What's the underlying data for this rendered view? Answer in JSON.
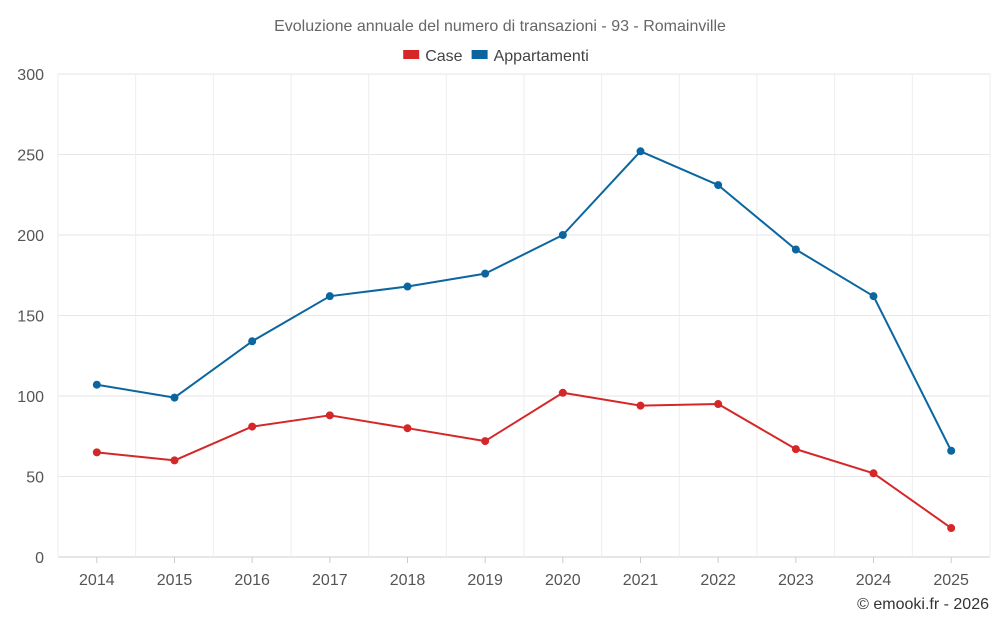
{
  "chart_data": {
    "type": "line",
    "title": "Evoluzione annuale del numero di transazioni - 93 - Romainville",
    "xlabel": "",
    "ylabel": "",
    "categories": [
      "2014",
      "2015",
      "2016",
      "2017",
      "2018",
      "2019",
      "2020",
      "2021",
      "2022",
      "2023",
      "2024",
      "2025"
    ],
    "ylim": [
      0,
      300
    ],
    "yticks": [
      0,
      50,
      100,
      150,
      200,
      250,
      300
    ],
    "grid": true,
    "legend_position": "top-center",
    "series": [
      {
        "name": "Case",
        "color": "#d62728",
        "values": [
          65,
          60,
          81,
          88,
          80,
          72,
          102,
          94,
          95,
          67,
          52,
          18
        ]
      },
      {
        "name": "Appartamenti",
        "color": "#0b66a0",
        "values": [
          107,
          99,
          134,
          162,
          168,
          176,
          200,
          252,
          231,
          191,
          162,
          66
        ]
      }
    ]
  },
  "credit": "© emooki.fr - 2026"
}
